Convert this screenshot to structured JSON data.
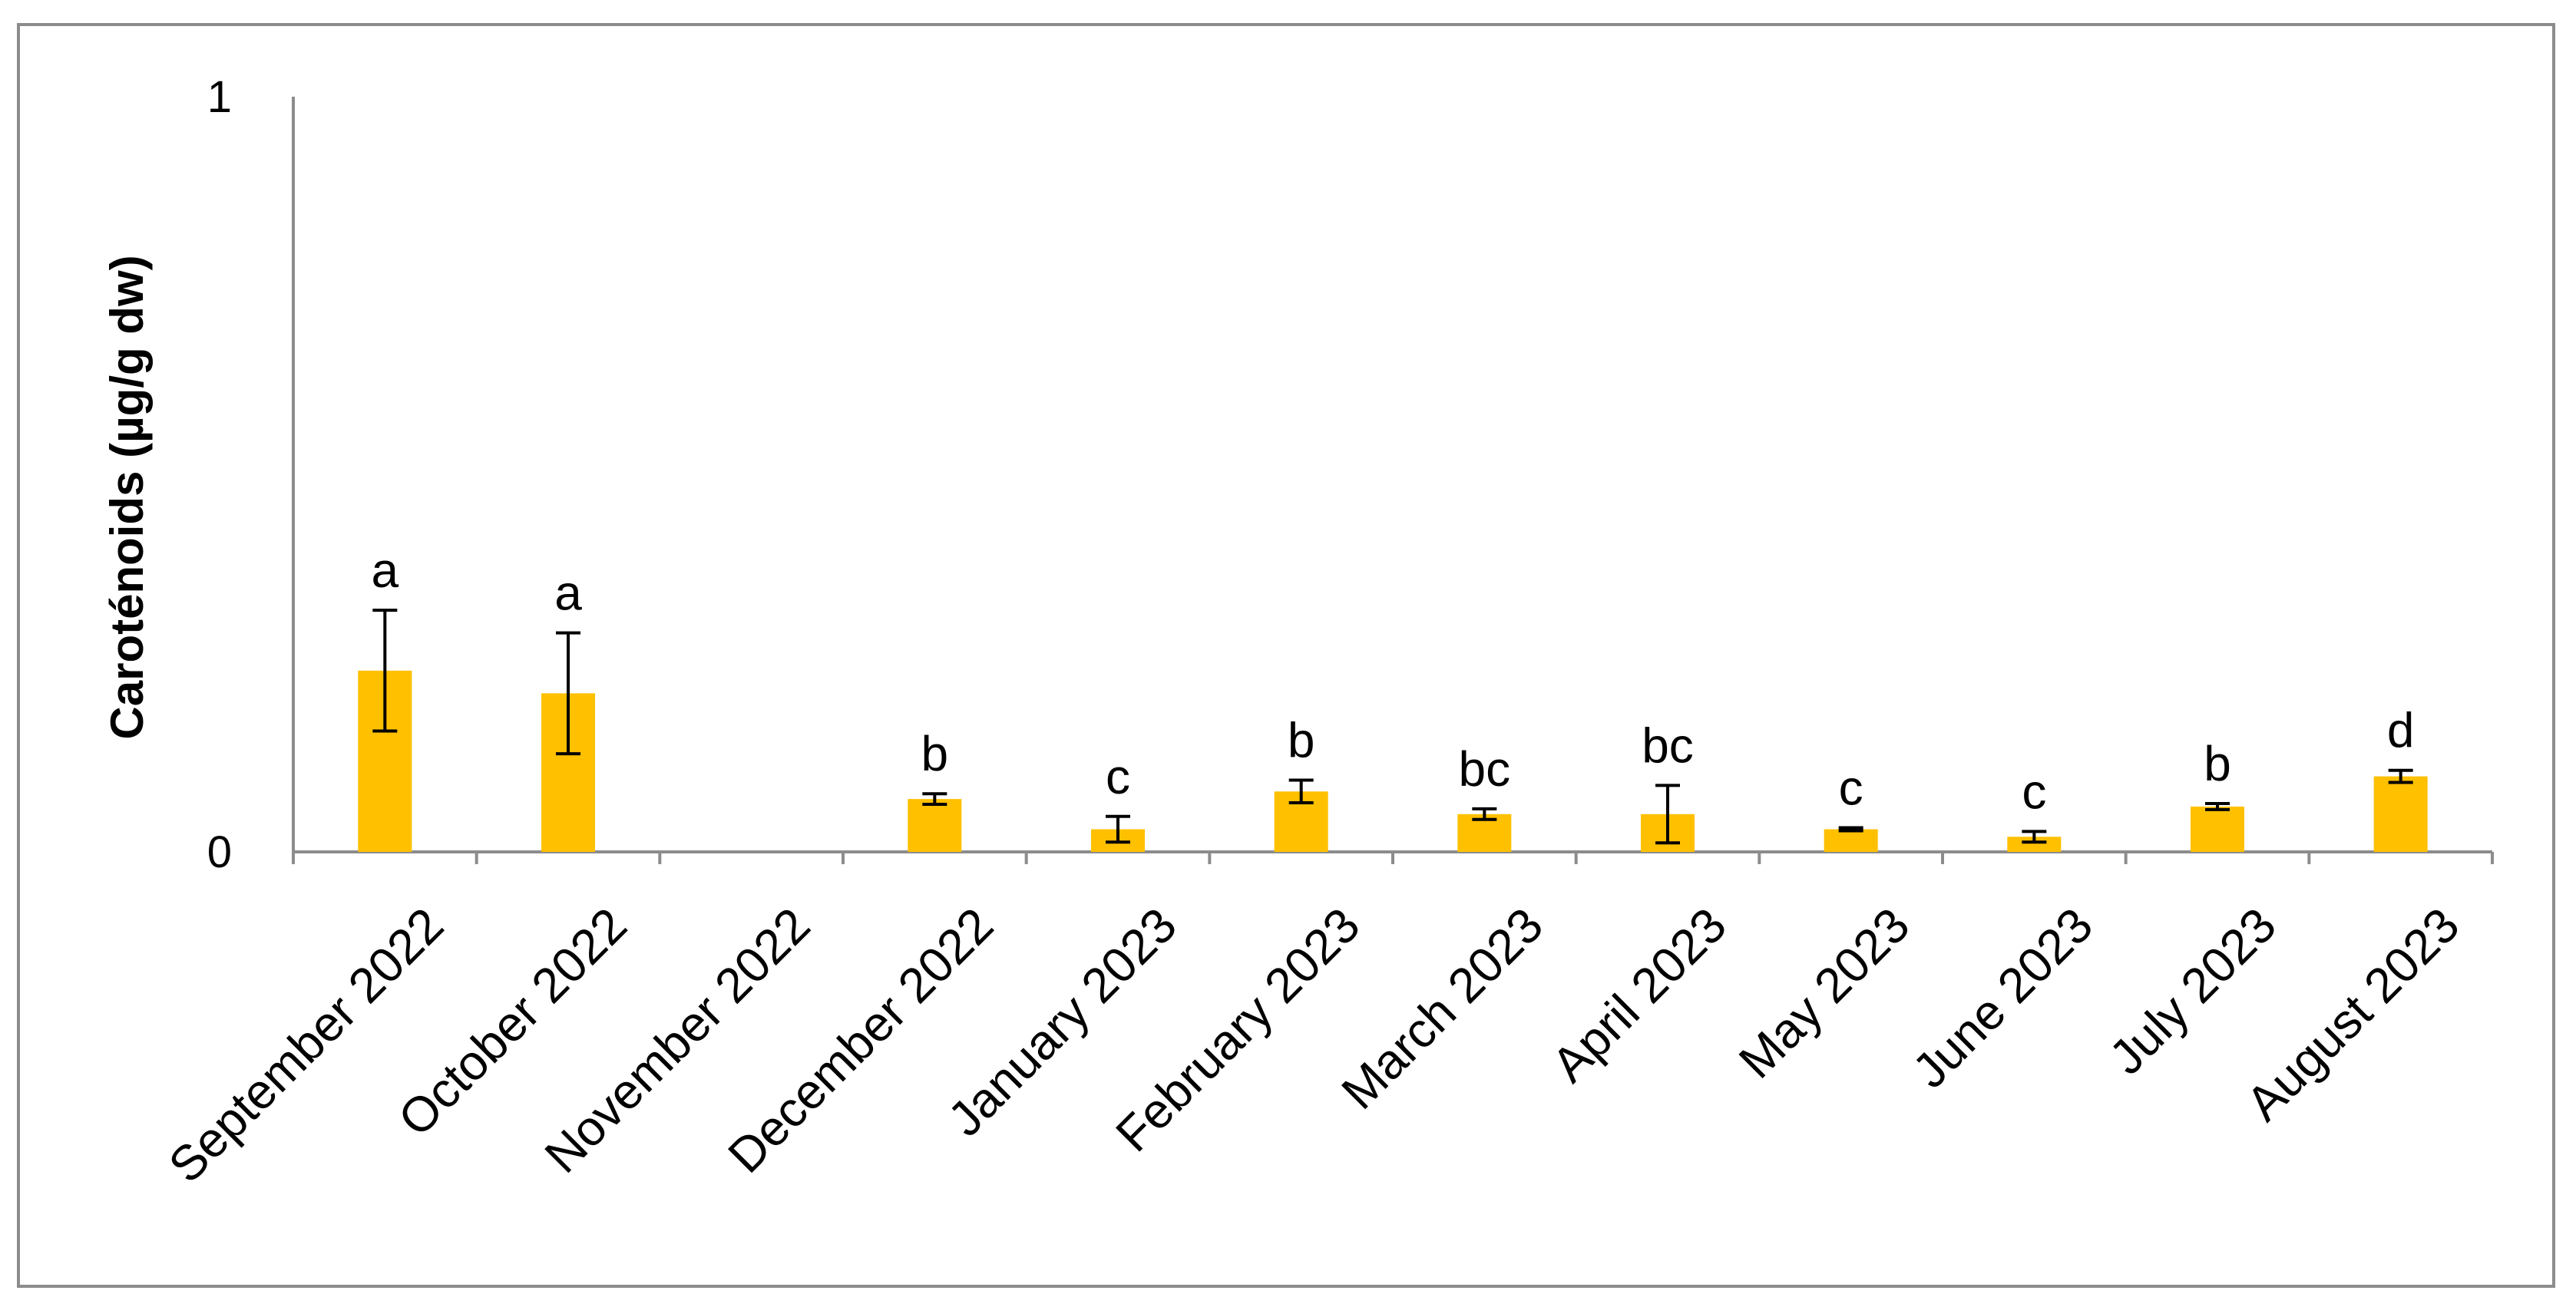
{
  "chart_data": {
    "type": "bar",
    "title": "",
    "xlabel": "",
    "ylabel": "Caroténoids  (µg/g   dw)",
    "ylim": [
      0,
      1
    ],
    "yticks": [
      "0",
      "1"
    ],
    "grid": false,
    "bar_color": "#FFC000",
    "categories": [
      "September 2022",
      "October 2022",
      "November 2022",
      "December 2022",
      "January 2023",
      "February 2023",
      "March 2023",
      "April 2023",
      "May 2023",
      "June 2023",
      "July 2023",
      "August 2023"
    ],
    "values": [
      0.24,
      0.21,
      0,
      0.07,
      0.03,
      0.08,
      0.05,
      0.05,
      0.03,
      0.02,
      0.06,
      0.1
    ],
    "errors": [
      0.08,
      0.08,
      0,
      0.007,
      0.017,
      0.015,
      0.007,
      0.038,
      0.002,
      0.007,
      0.004,
      0.008
    ],
    "significance_labels": [
      "a",
      "a",
      "",
      "b",
      "c",
      "b",
      "bc",
      "bc",
      "c",
      "c",
      "b",
      "d"
    ]
  }
}
